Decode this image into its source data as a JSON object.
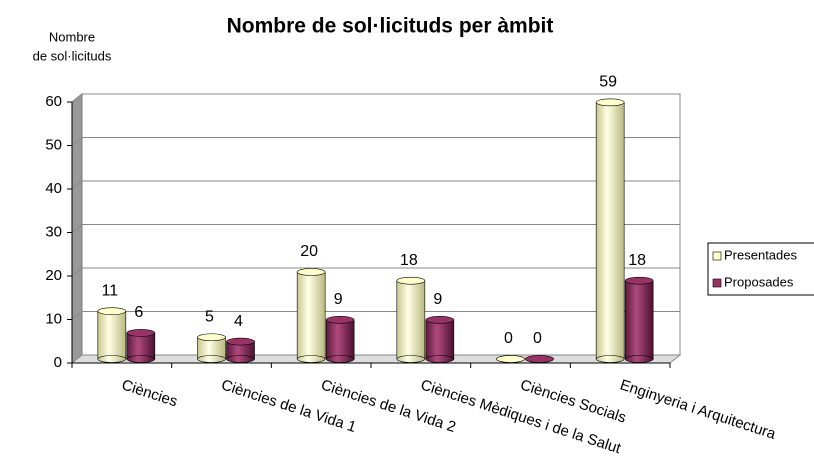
{
  "chart_data": {
    "type": "bar3d",
    "title": "Nombre de sol·licituds per àmbit",
    "ylabel": [
      "Nombre",
      "de sol·licituds"
    ],
    "categories": [
      "Ciències",
      "Ciències de la Vida 1",
      "Ciències de la Vida 2",
      "Ciències Mèdiques i de la Salut",
      "Ciències Socials",
      "Enginyeria i Arquitectura"
    ],
    "series": [
      {
        "name": "Presentades",
        "color": "#ffffcc",
        "values": [
          11,
          5,
          20,
          18,
          0,
          59
        ]
      },
      {
        "name": "Proposades",
        "color": "#993366",
        "values": [
          6,
          4,
          9,
          9,
          0,
          18
        ]
      }
    ],
    "ylim": [
      0,
      60
    ],
    "yticks": [
      0,
      10,
      20,
      30,
      40,
      50,
      60
    ],
    "grid": true,
    "legend": "right"
  }
}
